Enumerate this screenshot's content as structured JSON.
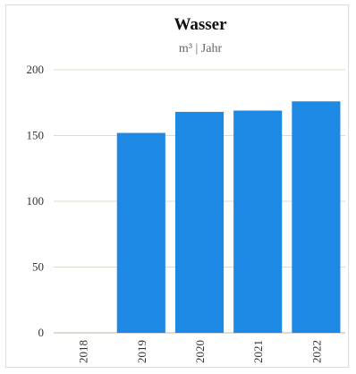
{
  "chart_data": {
    "type": "bar",
    "title": "Wasser",
    "subtitle": "m³ | Jahr",
    "xlabel": "",
    "ylabel": "",
    "categories": [
      "2018",
      "2019",
      "2020",
      "2021",
      "2022"
    ],
    "values": [
      0,
      152,
      168,
      169,
      176
    ],
    "yticks": [
      0,
      50,
      100,
      150,
      200
    ],
    "ylim": [
      0,
      200
    ],
    "grid": true,
    "legend": "none",
    "bar_color": "#1e88e5"
  }
}
